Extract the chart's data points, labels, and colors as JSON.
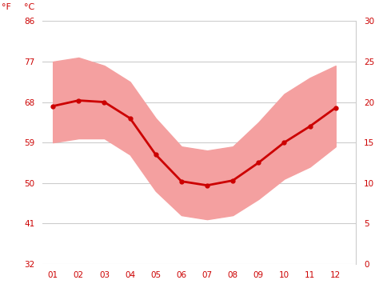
{
  "months": [
    1,
    2,
    3,
    4,
    5,
    6,
    7,
    8,
    9,
    10,
    11,
    12
  ],
  "month_labels": [
    "01",
    "02",
    "03",
    "04",
    "05",
    "06",
    "07",
    "08",
    "09",
    "10",
    "11",
    "12"
  ],
  "mean_c": [
    19.5,
    20.2,
    20.0,
    18.0,
    13.5,
    10.2,
    9.7,
    10.3,
    12.5,
    15.0,
    17.0,
    19.3
  ],
  "max_c": [
    25.0,
    25.5,
    24.5,
    22.5,
    18.0,
    14.5,
    14.0,
    14.5,
    17.5,
    21.0,
    23.0,
    24.5
  ],
  "min_c": [
    15.0,
    15.5,
    15.5,
    13.5,
    9.0,
    6.0,
    5.5,
    6.0,
    8.0,
    10.5,
    12.0,
    14.5
  ],
  "line_color": "#cc0000",
  "band_color": "#f4a0a0",
  "background_color": "#ffffff",
  "grid_color": "#cccccc",
  "tick_color": "#cc0000",
  "label_f": "°F",
  "label_c": "°C",
  "yticks_f": [
    32,
    41,
    50,
    59,
    68,
    77,
    86
  ],
  "yticks_c": [
    0,
    5,
    10,
    15,
    20,
    25,
    30
  ],
  "ylim_c": [
    0,
    30
  ],
  "figsize": [
    4.74,
    3.55
  ],
  "dpi": 100
}
